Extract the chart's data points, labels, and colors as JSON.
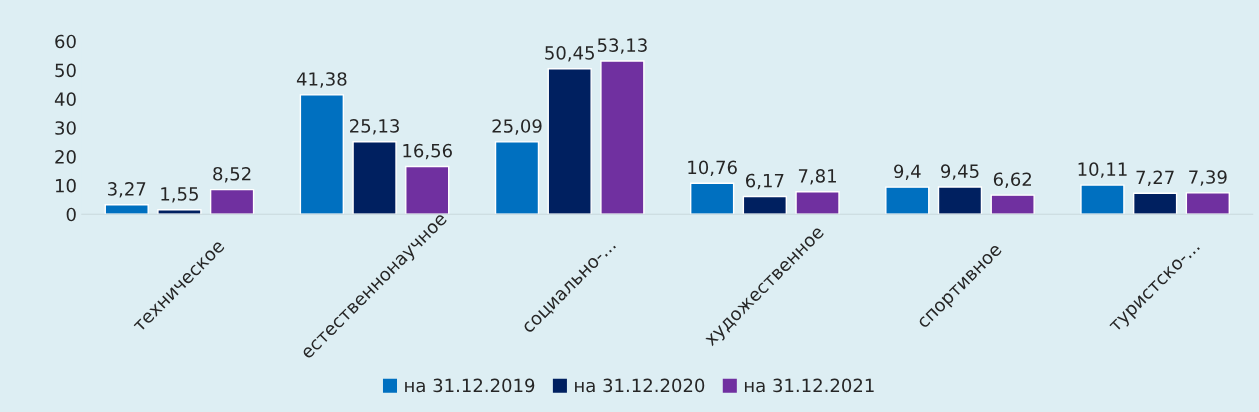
{
  "chart_data": {
    "type": "bar",
    "categories": [
      "техническое",
      "естественнонаучное",
      "социально-...",
      "художественное",
      "спортивное",
      "туристско-..."
    ],
    "series": [
      {
        "name": "на 31.12.2019",
        "color": "#0070c0",
        "values": [
          3.27,
          41.38,
          25.09,
          10.76,
          9.4,
          10.11
        ],
        "value_labels": [
          "3,27",
          "41,38",
          "25,09",
          "10,76",
          "9,4",
          "10,11"
        ]
      },
      {
        "name": "на 31.12.2020",
        "color": "#002060",
        "values": [
          1.55,
          25.13,
          50.45,
          6.17,
          9.45,
          7.27
        ],
        "value_labels": [
          "1,55",
          "25,13",
          "50,45",
          "6,17",
          "9,45",
          "7,27"
        ]
      },
      {
        "name": "на 31.12.2021",
        "color": "#7030a0",
        "values": [
          8.52,
          16.56,
          53.13,
          7.81,
          6.62,
          7.39
        ],
        "value_labels": [
          "8,52",
          "16,56",
          "53,13",
          "7,81",
          "6,62",
          "7,39"
        ]
      }
    ],
    "ylim": [
      0,
      60
    ],
    "yticks": [
      0,
      10,
      20,
      30,
      40,
      50,
      60
    ],
    "grid": false,
    "legend": "bottom"
  }
}
